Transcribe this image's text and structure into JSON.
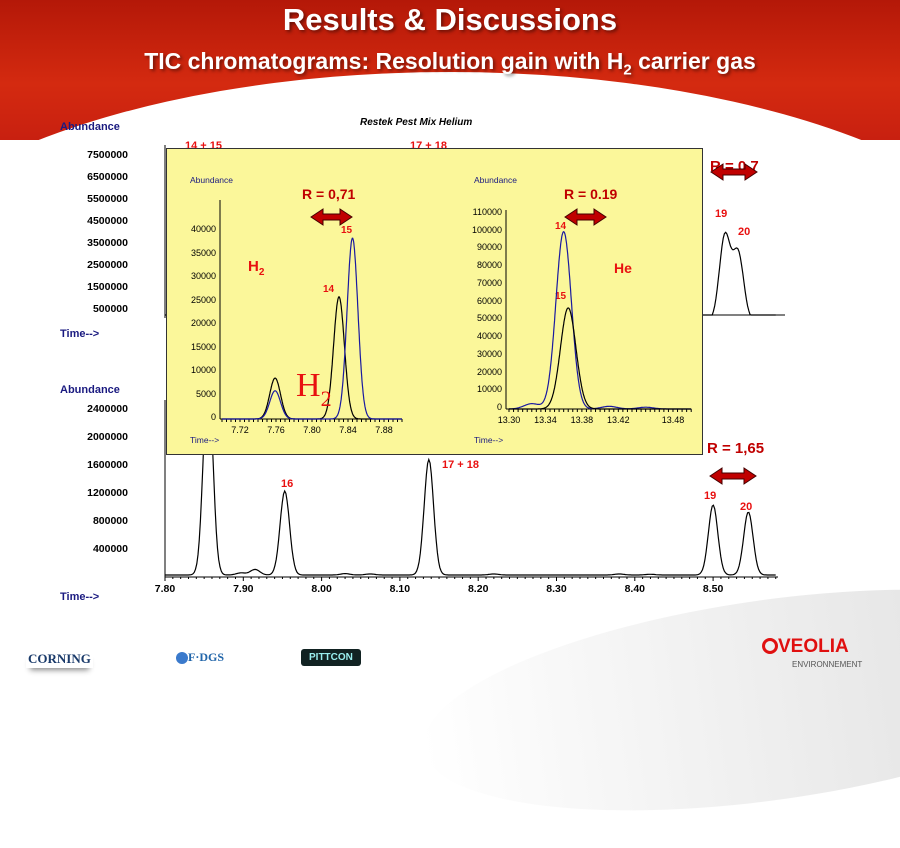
{
  "header": {
    "title": "Results & Discussions",
    "subtitle_pre": "TIC chromatograms: Resolution gain with H",
    "subtitle_sub": "2",
    "subtitle_post": " carrier gas"
  },
  "colors": {
    "banner": "#c82010",
    "inset_bg": "#fbf79a",
    "annotation_red": "#e81010",
    "arrow": "#c00000",
    "axis_label": "#1a1a80",
    "series_black": "#000000",
    "series_blue": "#1a1aa0"
  },
  "chart_data": [
    {
      "id": "helium_main",
      "type": "line",
      "title": "Restek Pest Mix Helium",
      "ylabel": "Abundance",
      "xlabel": "Time-->",
      "yticks": [
        "7500000",
        "6500000",
        "5500000",
        "4500000",
        "3500000",
        "2500000",
        "1500000",
        "500000"
      ],
      "annotations": [
        "14 + 15",
        "17 + 18",
        "R = 0,7",
        "19",
        "20"
      ],
      "series": [
        {
          "color": "#000000",
          "peaks": [
            [
              7.855,
              7500000
            ],
            [
              8.14,
              7500000
            ],
            [
              8.515,
              3900000
            ],
            [
              8.532,
              3100000
            ]
          ]
        }
      ],
      "xlim": [
        7.8,
        8.58
      ]
    },
    {
      "id": "hydrogen_main",
      "type": "line",
      "ylabel": "Abundance",
      "xlabel": "Time-->",
      "yticks": [
        "2400000",
        "2000000",
        "1600000",
        "1200000",
        "800000",
        "400000"
      ],
      "xticks": [
        "7.80",
        "7.90",
        "8.00",
        "8.10",
        "8.20",
        "8.30",
        "8.40",
        "8.50"
      ],
      "xlim": [
        7.8,
        8.58
      ],
      "ylim": [
        0,
        2600000
      ],
      "annotations": [
        "16",
        "17 + 18",
        "R = 1,65",
        "19",
        "20"
      ],
      "series": [
        {
          "color": "#000000",
          "peaks": [
            [
              7.855,
              2900000
            ],
            [
              7.897,
              30000
            ],
            [
              7.915,
              80000
            ],
            [
              7.953,
              1200000
            ],
            [
              8.03,
              20000
            ],
            [
              8.062,
              15000
            ],
            [
              8.137,
              1650000
            ],
            [
              8.22,
              15000
            ],
            [
              8.38,
              15000
            ],
            [
              8.42,
              10000
            ],
            [
              8.5,
              1000000
            ],
            [
              8.545,
              900000
            ]
          ]
        }
      ]
    },
    {
      "id": "h2_inset",
      "type": "line",
      "ylabel": "Abundance",
      "xlabel": "Time-->",
      "carrier": "H2",
      "yticks": [
        "40000",
        "35000",
        "30000",
        "25000",
        "20000",
        "15000",
        "10000",
        "5000",
        "0"
      ],
      "xticks": [
        "7.72",
        "7.76",
        "7.80",
        "7.84",
        "7.88"
      ],
      "xlim": [
        7.7,
        7.9
      ],
      "ylim": [
        0,
        45000
      ],
      "resolution": "R = 0,71",
      "annotations": [
        "14",
        "15"
      ],
      "series": [
        {
          "color": "#000000",
          "peaks": [
            [
              7.759,
              8700
            ],
            [
              7.83,
              26000
            ]
          ]
        },
        {
          "color": "#1a1aa0",
          "peaks": [
            [
              7.759,
              6000
            ],
            [
              7.845,
              38500
            ]
          ]
        }
      ]
    },
    {
      "id": "he_inset",
      "type": "line",
      "ylabel": "Abundance",
      "xlabel": "Time-->",
      "carrier": "He",
      "yticks": [
        "110000",
        "100000",
        "90000",
        "80000",
        "70000",
        "60000",
        "50000",
        "40000",
        "30000",
        "20000",
        "10000",
        "0"
      ],
      "xticks": [
        "13.30",
        "13.34",
        "13.38",
        "13.42",
        "13.48"
      ],
      "xlim": [
        13.3,
        13.5
      ],
      "ylim": [
        0,
        110000
      ],
      "resolution": "R = 0.19",
      "annotations": [
        "14",
        "15"
      ],
      "series": [
        {
          "color": "#1a1aa0",
          "peaks": [
            [
              13.36,
              100000
            ],
            [
              13.325,
              3000
            ],
            [
              13.41,
              1500
            ],
            [
              13.45,
              1000
            ]
          ]
        },
        {
          "color": "#000000",
          "peaks": [
            [
              13.365,
              57000
            ]
          ]
        }
      ]
    }
  ],
  "logos": {
    "corning": "CORNING",
    "fdgs": "F·DGS",
    "pittcon": "PITTCON",
    "veolia": "VEOLIA",
    "veolia_sub": "ENVIRONNEMENT"
  },
  "watermark": {
    "main": "H",
    "sub": "2"
  }
}
